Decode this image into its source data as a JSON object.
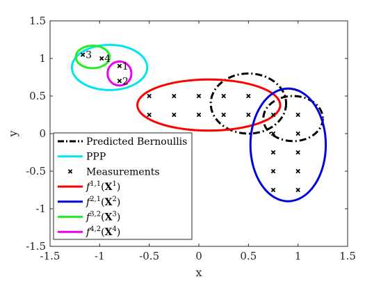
{
  "chart_data": {
    "type": "scatter",
    "xlabel": "x",
    "ylabel": "y",
    "xlim": [
      -1.5,
      1.5
    ],
    "ylim": [
      -1.5,
      1.5
    ],
    "xticks": [
      -1.5,
      -1,
      -0.5,
      0,
      0.5,
      1,
      1.5
    ],
    "yticks": [
      -1.5,
      -1,
      -0.5,
      0,
      0.5,
      1,
      1.5
    ],
    "xtick_labels": [
      "-1.5",
      "-1",
      "-0.5",
      "0",
      "0.5",
      "1",
      "1.5"
    ],
    "ytick_labels": [
      "-1.5",
      "-1",
      "-0.5",
      "0",
      "0.5",
      "1",
      "1.5"
    ],
    "grid": false,
    "legend_position": "bottom-left",
    "series": [
      {
        "name": "Predicted Bernoullis",
        "kind": "ellipse",
        "color": "#000000",
        "style": "dashdot",
        "ellipses": [
          {
            "cx": 0.5,
            "cy": 0.4,
            "rx": 0.38,
            "ry": 0.4
          },
          {
            "cx": 0.95,
            "cy": 0.2,
            "rx": 0.3,
            "ry": 0.3
          }
        ]
      },
      {
        "name": "PPP",
        "kind": "ellipse",
        "color": "#00e5ee",
        "style": "solid",
        "ellipses": [
          {
            "cx": -0.9,
            "cy": 0.88,
            "rx": 0.38,
            "ry": 0.3
          }
        ]
      },
      {
        "name": "Measurements",
        "kind": "points",
        "color": "#000000",
        "points": [
          [
            -1.17,
            1.05
          ],
          [
            -0.98,
            1.0
          ],
          [
            -0.8,
            0.9
          ],
          [
            -0.8,
            0.7
          ],
          [
            -0.5,
            0.5
          ],
          [
            -0.25,
            0.5
          ],
          [
            0.0,
            0.5
          ],
          [
            0.25,
            0.5
          ],
          [
            0.5,
            0.5
          ],
          [
            -0.5,
            0.25
          ],
          [
            -0.25,
            0.25
          ],
          [
            0.0,
            0.25
          ],
          [
            0.25,
            0.25
          ],
          [
            0.5,
            0.25
          ],
          [
            0.75,
            0.25
          ],
          [
            1.0,
            0.25
          ],
          [
            0.75,
            0.0
          ],
          [
            1.0,
            0.0
          ],
          [
            0.75,
            -0.25
          ],
          [
            1.0,
            -0.25
          ],
          [
            0.75,
            -0.5
          ],
          [
            1.0,
            -0.5
          ],
          [
            0.75,
            -0.75
          ],
          [
            1.0,
            -0.75
          ]
        ],
        "point_labels": [
          {
            "x": -1.17,
            "y": 1.05,
            "text": "3",
            "pos": "right"
          },
          {
            "x": -0.98,
            "y": 1.0,
            "text": "4",
            "pos": "right"
          },
          {
            "x": -0.8,
            "y": 0.9,
            "text": "1",
            "pos": "right"
          },
          {
            "x": -0.8,
            "y": 0.7,
            "text": "2",
            "pos": "right"
          }
        ]
      },
      {
        "name_main": "f",
        "name_sup": "1,1",
        "name_arg": "X",
        "name_arg_sup": "1",
        "kind": "ellipse",
        "color": "#ff0000",
        "style": "solid",
        "ellipses": [
          {
            "cx": 0.1,
            "cy": 0.38,
            "rx": 0.72,
            "ry": 0.34
          }
        ]
      },
      {
        "name_main": "f",
        "name_sup": "2,1",
        "name_arg": "X",
        "name_arg_sup": "2",
        "kind": "ellipse",
        "color": "#0000dd",
        "style": "solid",
        "ellipses": [
          {
            "cx": 0.9,
            "cy": -0.15,
            "rx": 0.38,
            "ry": 0.75
          }
        ]
      },
      {
        "name_main": "f",
        "name_sup": "3,2",
        "name_arg": "X",
        "name_arg_sup": "3",
        "kind": "ellipse",
        "color": "#22ee22",
        "style": "solid",
        "ellipses": [
          {
            "cx": -1.07,
            "cy": 1.02,
            "rx": 0.17,
            "ry": 0.15
          }
        ]
      },
      {
        "name_main": "f",
        "name_sup": "4,2",
        "name_arg": "X",
        "name_arg_sup": "4",
        "kind": "ellipse",
        "color": "#ee00ee",
        "style": "solid",
        "ellipses": [
          {
            "cx": -0.8,
            "cy": 0.8,
            "rx": 0.12,
            "ry": 0.16
          }
        ]
      }
    ]
  }
}
